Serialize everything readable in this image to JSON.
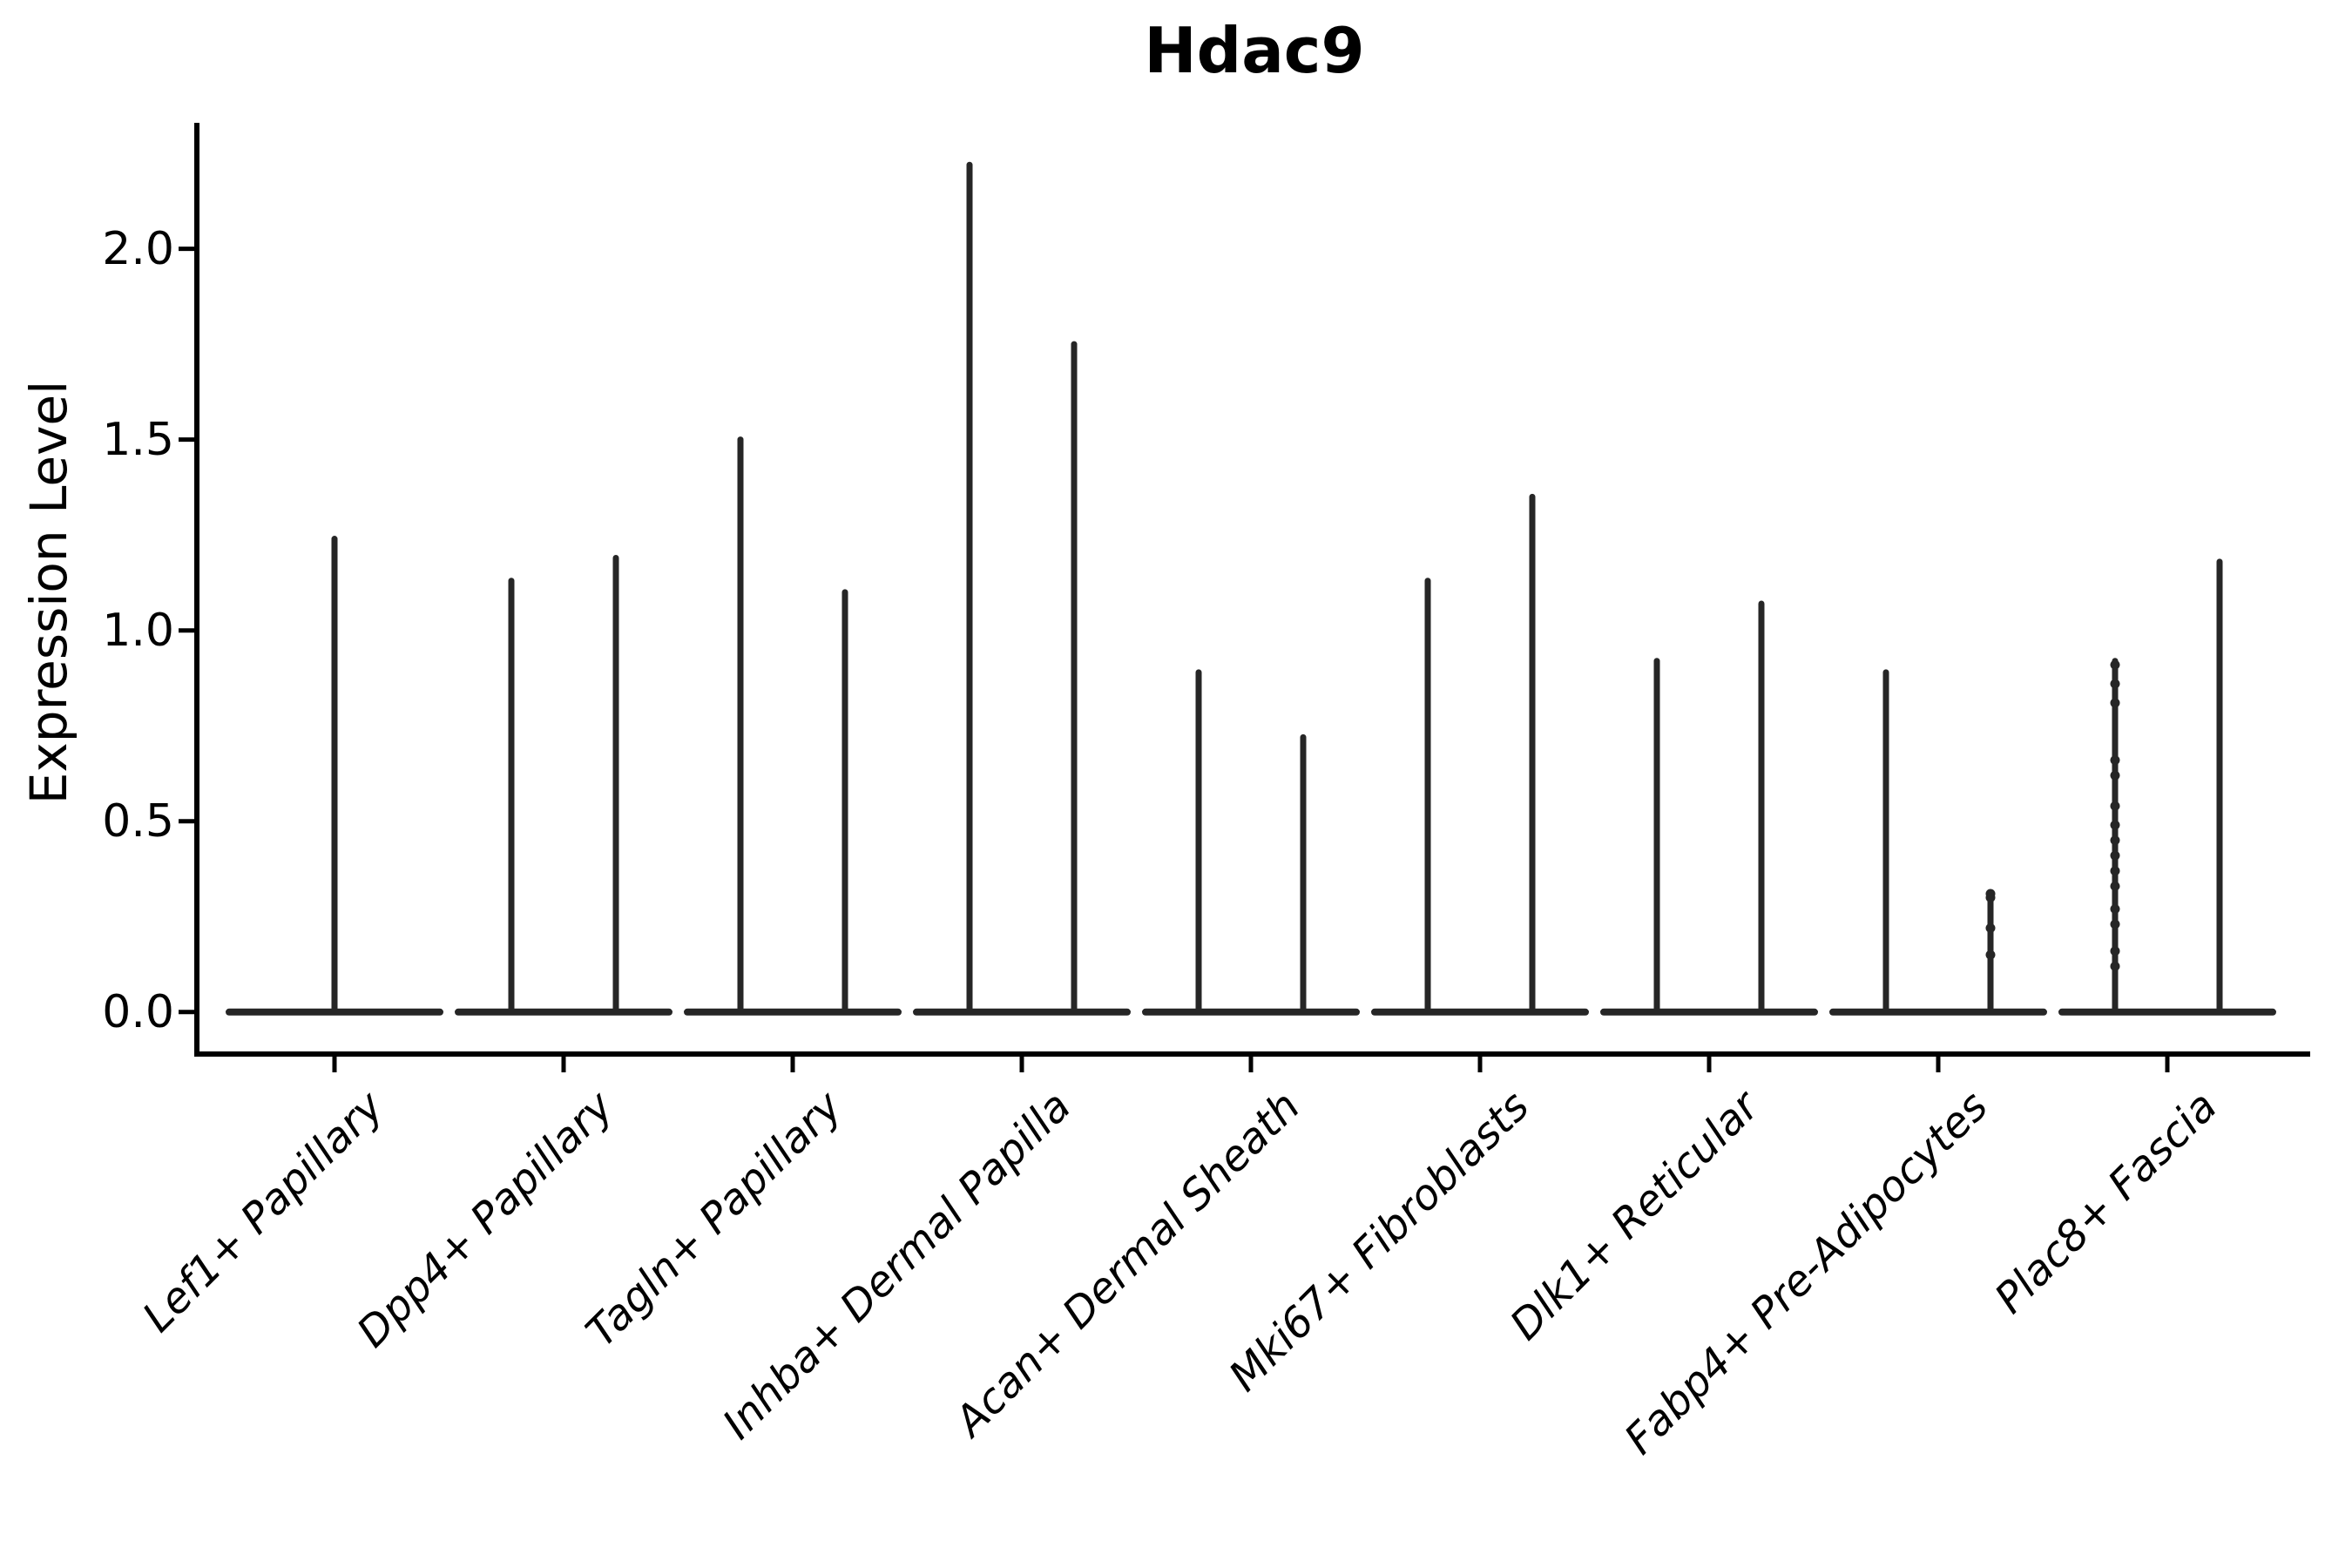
{
  "title": "Hdac9",
  "axes": {
    "ylabel": "Expression Level",
    "yticks": [
      {
        "label": "0.0",
        "value": 0.0
      },
      {
        "label": "0.5",
        "value": 0.5
      },
      {
        "label": "1.0",
        "value": 1.0
      },
      {
        "label": "1.5",
        "value": 1.5
      },
      {
        "label": "2.0",
        "value": 2.0
      }
    ],
    "ylim": [
      -0.11,
      2.33
    ],
    "grid": false,
    "legend": "none"
  },
  "chart_data": {
    "type": "violin",
    "title": "Hdac9",
    "xlabel": "",
    "ylabel": "Expression Level",
    "line_color": "#262626",
    "axis_color": "#000000",
    "background": "#ffffff",
    "categories": [
      "Lef1+ Papillary",
      "Dpp4+ Papillary",
      "Tagln+ Papillary",
      "Inhba+ Dermal Papilla",
      "Acan+ Dermal Sheath",
      "Mki67+ Fibroblasts",
      "Dlk1+ Reticular",
      "Fabp4+ Pre-Adipocytes",
      "Plac8+ Fascia"
    ],
    "series": [
      {
        "category": "Lef1+ Papillary",
        "violins": [
          {
            "slot": "center",
            "min": 0,
            "max": 1.24
          }
        ]
      },
      {
        "category": "Dpp4+ Papillary",
        "violins": [
          {
            "slot": "left",
            "min": 0,
            "max": 1.13
          },
          {
            "slot": "right",
            "min": 0,
            "max": 1.19
          }
        ]
      },
      {
        "category": "Tagln+ Papillary",
        "violins": [
          {
            "slot": "left",
            "min": 0,
            "max": 1.5
          },
          {
            "slot": "right",
            "min": 0,
            "max": 1.1
          }
        ]
      },
      {
        "category": "Inhba+ Dermal Papilla",
        "violins": [
          {
            "slot": "left",
            "min": 0,
            "max": 2.22
          },
          {
            "slot": "right",
            "min": 0,
            "max": 1.75
          }
        ]
      },
      {
        "category": "Acan+ Dermal Sheath",
        "violins": [
          {
            "slot": "left",
            "min": 0,
            "max": 0.89
          },
          {
            "slot": "right",
            "min": 0,
            "max": 0.72
          }
        ]
      },
      {
        "category": "Mki67+ Fibroblasts",
        "violins": [
          {
            "slot": "left",
            "min": 0,
            "max": 1.13
          },
          {
            "slot": "right",
            "min": 0,
            "max": 1.35
          }
        ]
      },
      {
        "category": "Dlk1+ Reticular",
        "violins": [
          {
            "slot": "left",
            "min": 0,
            "max": 0.92
          },
          {
            "slot": "right",
            "min": 0,
            "max": 1.07
          }
        ]
      },
      {
        "category": "Fabp4+ Pre-Adipocytes",
        "violins": [
          {
            "slot": "left",
            "min": 0,
            "max": 0.89
          },
          {
            "slot": "right",
            "min": 0,
            "max": 0.31,
            "points": [
              0.31,
              0.3,
              0.22,
              0.15
            ]
          }
        ]
      },
      {
        "category": "Plac8+ Fascia",
        "violins": [
          {
            "slot": "left",
            "min": 0,
            "max": 0.92,
            "points": [
              0.91,
              0.86,
              0.81,
              0.66,
              0.62,
              0.54,
              0.49,
              0.45,
              0.41,
              0.37,
              0.33,
              0.27,
              0.23,
              0.16,
              0.12
            ]
          },
          {
            "slot": "right",
            "min": 0,
            "max": 1.18
          }
        ]
      }
    ]
  }
}
